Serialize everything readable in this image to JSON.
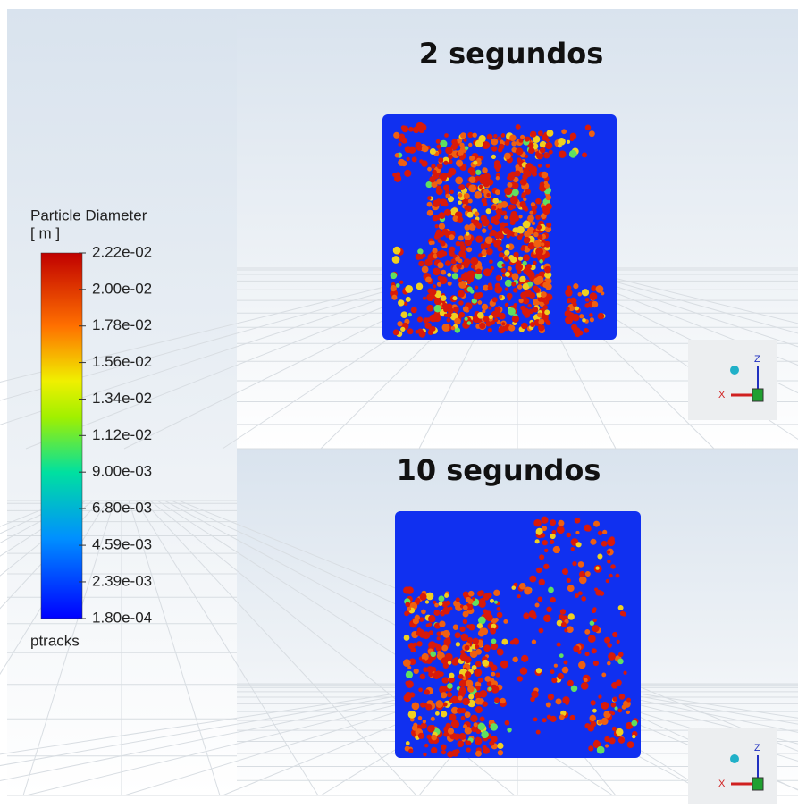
{
  "legend": {
    "title": "Particle Diameter",
    "unit": "[ m ]",
    "ticks": [
      {
        "value": 0.0222,
        "label": "2.22e-02"
      },
      {
        "value": 0.02,
        "label": "2.00e-02"
      },
      {
        "value": 0.0178,
        "label": "1.78e-02"
      },
      {
        "value": 0.0156,
        "label": "1.56e-02"
      },
      {
        "value": 0.0134,
        "label": "1.34e-02"
      },
      {
        "value": 0.0112,
        "label": "1.12e-02"
      },
      {
        "value": 0.009,
        "label": "9.00e-03"
      },
      {
        "value": 0.0068,
        "label": "6.80e-03"
      },
      {
        "value": 0.00459,
        "label": "4.59e-03"
      },
      {
        "value": 0.00239,
        "label": "2.39e-03"
      },
      {
        "value": 0.00018,
        "label": "1.80e-04"
      }
    ],
    "footer": "ptracks"
  },
  "panels": [
    {
      "title": "2 segundos",
      "triad": {
        "x": "X",
        "z": "Z"
      }
    },
    {
      "title": "10 segundos",
      "triad": {
        "x": "X",
        "z": "Z"
      }
    }
  ]
}
